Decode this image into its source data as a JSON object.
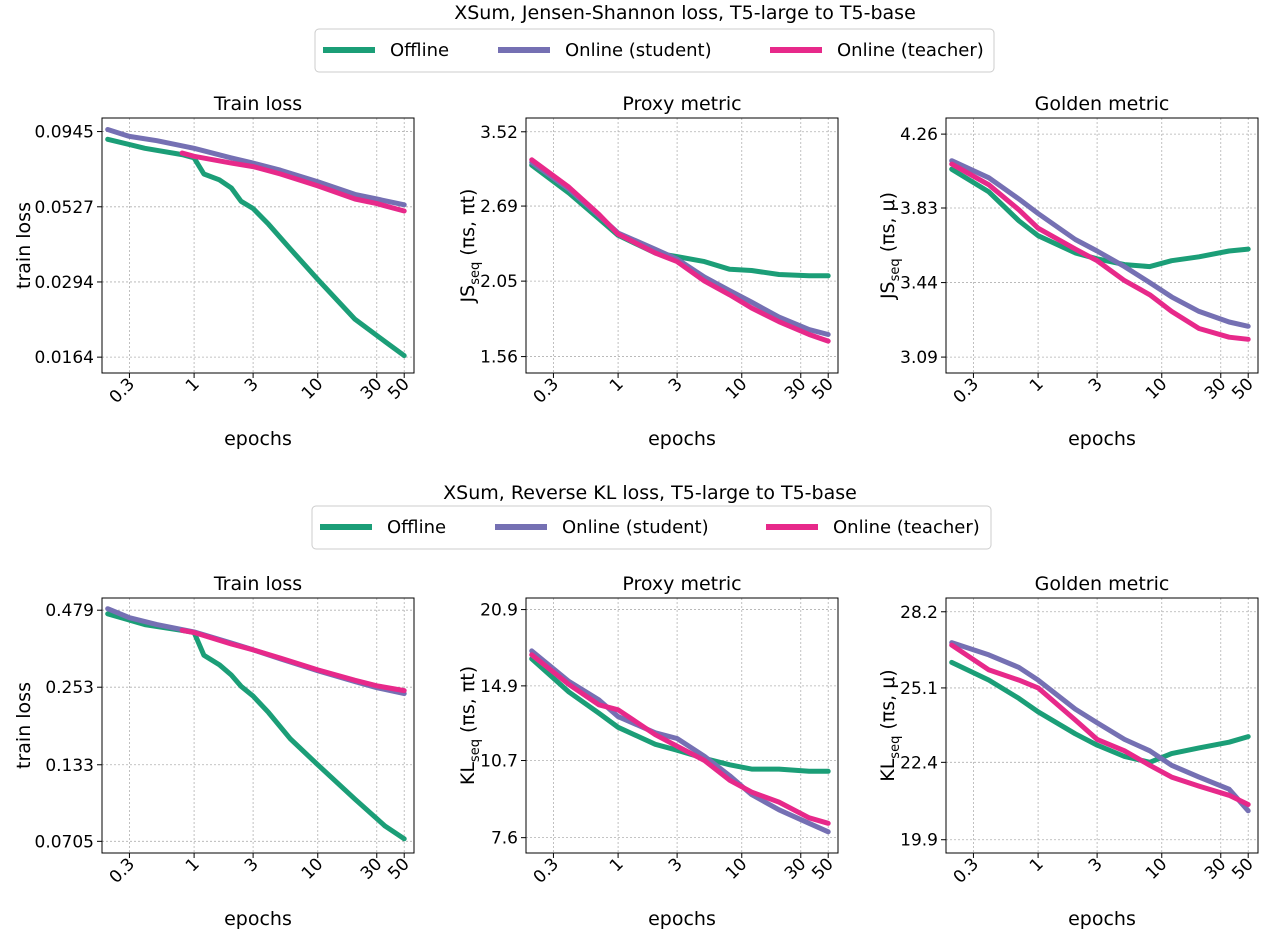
{
  "figure": {
    "colors": {
      "offline": "#1b9e77",
      "student": "#7570b3",
      "teacher": "#e7298a"
    }
  },
  "chart_data": [
    {
      "group": "XSum, Jensen-Shannon loss, T5-large to T5-base",
      "type": "line",
      "title": "Train loss",
      "xlabel": "epochs",
      "ylabel": "train loss",
      "ylabel_parts": null,
      "x_scale": "log",
      "y_scale": "log",
      "xlim": [
        0.18,
        60
      ],
      "ylim": [
        0.0145,
        0.105
      ],
      "xticks": [
        0.3,
        1,
        3,
        10,
        30,
        50
      ],
      "xtick_labels": [
        "0.3",
        "1",
        "3",
        "10",
        "30",
        "50"
      ],
      "yticks": [
        0.0164,
        0.0294,
        0.0527,
        0.0945
      ],
      "ytick_labels": [
        "0.0164",
        "0.0294",
        "0.0527",
        "0.0945"
      ],
      "grid": true,
      "series": [
        {
          "name": "Offline",
          "color": "#1b9e77",
          "x": [
            0.2,
            0.4,
            0.8,
            1.0,
            1.2,
            1.6,
            2.0,
            2.4,
            3.0,
            4,
            6,
            10,
            20,
            35,
            50
          ],
          "y": [
            0.089,
            0.083,
            0.079,
            0.077,
            0.068,
            0.065,
            0.061,
            0.055,
            0.052,
            0.046,
            0.038,
            0.03,
            0.022,
            0.0185,
            0.0166
          ]
        },
        {
          "name": "Online (student)",
          "color": "#7570b3",
          "x": [
            0.2,
            0.3,
            0.5,
            1,
            2,
            3,
            5,
            10,
            20,
            30,
            50
          ],
          "y": [
            0.096,
            0.091,
            0.088,
            0.083,
            0.077,
            0.074,
            0.07,
            0.064,
            0.058,
            0.056,
            0.0535
          ]
        },
        {
          "name": "Online (teacher)",
          "color": "#e7298a",
          "x": [
            0.8,
            1,
            2,
            3,
            5,
            10,
            20,
            30,
            50
          ],
          "y": [
            0.08,
            0.078,
            0.074,
            0.072,
            0.068,
            0.062,
            0.056,
            0.054,
            0.051
          ]
        }
      ]
    },
    {
      "group": "XSum, Jensen-Shannon loss, T5-large to T5-base",
      "type": "line",
      "title": "Proxy metric",
      "xlabel": "epochs",
      "ylabel": null,
      "ylabel_parts": [
        "JS",
        "seq",
        " (πs, πt)"
      ],
      "x_scale": "log",
      "y_scale": "log",
      "xlim": [
        0.18,
        60
      ],
      "ylim": [
        1.47,
        3.7
      ],
      "xticks": [
        0.3,
        1,
        3,
        10,
        30,
        50
      ],
      "xtick_labels": [
        "0.3",
        "1",
        "3",
        "10",
        "30",
        "50"
      ],
      "yticks": [
        1.56,
        2.05,
        2.69,
        3.52
      ],
      "ytick_labels": [
        "1.56",
        "2.05",
        "2.69",
        "3.52"
      ],
      "grid": true,
      "series": [
        {
          "name": "Offline",
          "color": "#1b9e77",
          "x": [
            0.2,
            0.4,
            0.7,
            1,
            2,
            3,
            5,
            8,
            12,
            20,
            35,
            50
          ],
          "y": [
            3.12,
            2.82,
            2.57,
            2.42,
            2.27,
            2.24,
            2.2,
            2.14,
            2.13,
            2.1,
            2.09,
            2.09
          ]
        },
        {
          "name": "Online (student)",
          "color": "#7570b3",
          "x": [
            0.2,
            0.4,
            0.7,
            1,
            2,
            3,
            5,
            8,
            12,
            20,
            35,
            50
          ],
          "y": [
            3.15,
            2.86,
            2.6,
            2.44,
            2.3,
            2.22,
            2.08,
            1.98,
            1.9,
            1.8,
            1.72,
            1.69
          ]
        },
        {
          "name": "Online (teacher)",
          "color": "#e7298a",
          "x": [
            0.2,
            0.4,
            0.7,
            1,
            2,
            3,
            5,
            8,
            12,
            20,
            35,
            50
          ],
          "y": [
            3.18,
            2.88,
            2.61,
            2.43,
            2.27,
            2.2,
            2.05,
            1.95,
            1.86,
            1.77,
            1.69,
            1.65
          ]
        }
      ]
    },
    {
      "group": "XSum, Jensen-Shannon loss, T5-large to T5-base",
      "type": "line",
      "title": "Golden metric",
      "xlabel": "epochs",
      "ylabel": null,
      "ylabel_parts": [
        "JS",
        "seq",
        " (πs, μ)"
      ],
      "x_scale": "log",
      "y_scale": "log",
      "xlim": [
        0.18,
        60
      ],
      "ylim": [
        3.02,
        4.36
      ],
      "xticks": [
        0.3,
        1,
        3,
        10,
        30,
        50
      ],
      "xtick_labels": [
        "0.3",
        "1",
        "3",
        "10",
        "30",
        "50"
      ],
      "yticks": [
        3.09,
        3.44,
        3.83,
        4.26
      ],
      "ytick_labels": [
        "3.09",
        "3.44",
        "3.83",
        "4.26"
      ],
      "grid": true,
      "series": [
        {
          "name": "Offline",
          "color": "#1b9e77",
          "x": [
            0.2,
            0.4,
            0.7,
            1,
            2,
            3,
            5,
            8,
            12,
            20,
            35,
            50
          ],
          "y": [
            4.05,
            3.92,
            3.76,
            3.68,
            3.59,
            3.56,
            3.53,
            3.52,
            3.55,
            3.57,
            3.6,
            3.61
          ]
        },
        {
          "name": "Online (student)",
          "color": "#7570b3",
          "x": [
            0.2,
            0.4,
            0.7,
            1,
            2,
            3,
            5,
            8,
            12,
            20,
            35,
            50
          ],
          "y": [
            4.1,
            4.0,
            3.88,
            3.8,
            3.66,
            3.6,
            3.52,
            3.44,
            3.37,
            3.3,
            3.25,
            3.23
          ]
        },
        {
          "name": "Online (teacher)",
          "color": "#e7298a",
          "x": [
            0.2,
            0.4,
            0.7,
            1,
            2,
            3,
            5,
            8,
            12,
            20,
            35,
            50
          ],
          "y": [
            4.08,
            3.96,
            3.82,
            3.72,
            3.61,
            3.55,
            3.45,
            3.38,
            3.3,
            3.22,
            3.18,
            3.17
          ]
        }
      ]
    },
    {
      "group": "XSum, Reverse KL loss, T5-large to T5-base",
      "type": "line",
      "title": "Train loss",
      "xlabel": "epochs",
      "ylabel": "train loss",
      "ylabel_parts": null,
      "x_scale": "log",
      "y_scale": "log",
      "xlim": [
        0.18,
        60
      ],
      "ylim": [
        0.064,
        0.53
      ],
      "xticks": [
        0.3,
        1,
        3,
        10,
        30,
        50
      ],
      "xtick_labels": [
        "0.3",
        "1",
        "3",
        "10",
        "30",
        "50"
      ],
      "yticks": [
        0.0705,
        0.133,
        0.253,
        0.479
      ],
      "ytick_labels": [
        "0.0705",
        "0.133",
        "0.253",
        "0.479"
      ],
      "grid": true,
      "series": [
        {
          "name": "Offline",
          "color": "#1b9e77",
          "x": [
            0.2,
            0.4,
            0.8,
            1.0,
            1.2,
            1.6,
            2.0,
            2.4,
            3.0,
            4,
            6,
            10,
            20,
            35,
            50
          ],
          "y": [
            0.465,
            0.425,
            0.405,
            0.398,
            0.33,
            0.305,
            0.28,
            0.255,
            0.235,
            0.205,
            0.165,
            0.133,
            0.1,
            0.08,
            0.072
          ]
        },
        {
          "name": "Online (student)",
          "color": "#7570b3",
          "x": [
            0.2,
            0.3,
            0.5,
            1,
            2,
            3,
            5,
            10,
            20,
            30,
            50
          ],
          "y": [
            0.485,
            0.45,
            0.425,
            0.4,
            0.365,
            0.345,
            0.32,
            0.29,
            0.265,
            0.252,
            0.24
          ]
        },
        {
          "name": "Online (teacher)",
          "color": "#e7298a",
          "x": [
            0.8,
            1,
            2,
            3,
            5,
            10,
            20,
            30,
            50
          ],
          "y": [
            0.405,
            0.398,
            0.362,
            0.345,
            0.322,
            0.292,
            0.268,
            0.256,
            0.246
          ]
        }
      ]
    },
    {
      "group": "XSum, Reverse KL loss, T5-large to T5-base",
      "type": "line",
      "title": "Proxy metric",
      "xlabel": "epochs",
      "ylabel": null,
      "ylabel_parts": [
        "KL",
        "seq",
        " (πs, πt)"
      ],
      "x_scale": "log",
      "y_scale": "log",
      "xlim": [
        0.18,
        60
      ],
      "ylim": [
        7.1,
        22.0
      ],
      "xticks": [
        0.3,
        1,
        3,
        10,
        30,
        50
      ],
      "xtick_labels": [
        "0.3",
        "1",
        "3",
        "10",
        "30",
        "50"
      ],
      "yticks": [
        7.6,
        10.7,
        14.9,
        20.9
      ],
      "ytick_labels": [
        "7.6",
        "10.7",
        "14.9",
        "20.9"
      ],
      "grid": true,
      "series": [
        {
          "name": "Offline",
          "color": "#1b9e77",
          "x": [
            0.2,
            0.4,
            0.7,
            1,
            2,
            3,
            5,
            8,
            12,
            20,
            35,
            50
          ],
          "y": [
            16.8,
            14.5,
            13.2,
            12.4,
            11.5,
            11.2,
            10.8,
            10.5,
            10.3,
            10.3,
            10.2,
            10.2
          ]
        },
        {
          "name": "Online (student)",
          "color": "#7570b3",
          "x": [
            0.2,
            0.4,
            0.7,
            1,
            2,
            3,
            5,
            8,
            12,
            20,
            35,
            50
          ],
          "y": [
            17.4,
            15.2,
            14.0,
            13.0,
            12.1,
            11.8,
            10.9,
            10.0,
            9.2,
            8.6,
            8.1,
            7.8
          ]
        },
        {
          "name": "Online (teacher)",
          "color": "#e7298a",
          "x": [
            0.2,
            0.4,
            0.7,
            1,
            2,
            3,
            5,
            8,
            12,
            20,
            35,
            50
          ],
          "y": [
            17.1,
            15.0,
            13.7,
            13.4,
            12.0,
            11.4,
            10.7,
            9.8,
            9.3,
            8.9,
            8.3,
            8.1
          ]
        }
      ]
    },
    {
      "group": "XSum, Reverse KL loss, T5-large to T5-base",
      "type": "line",
      "title": "Golden metric",
      "xlabel": "epochs",
      "ylabel": null,
      "ylabel_parts": [
        "KL",
        "seq",
        " (πs, μ)"
      ],
      "x_scale": "log",
      "y_scale": "log",
      "xlim": [
        0.18,
        60
      ],
      "ylim": [
        19.5,
        28.8
      ],
      "xticks": [
        0.3,
        1,
        3,
        10,
        30,
        50
      ],
      "xtick_labels": [
        "0.3",
        "1",
        "3",
        "10",
        "30",
        "50"
      ],
      "yticks": [
        19.9,
        22.4,
        25.1,
        28.2
      ],
      "ytick_labels": [
        "19.9",
        "22.4",
        "25.1",
        "28.2"
      ],
      "grid": true,
      "series": [
        {
          "name": "Offline",
          "color": "#1b9e77",
          "x": [
            0.2,
            0.4,
            0.7,
            1,
            2,
            3,
            5,
            8,
            12,
            20,
            35,
            50
          ],
          "y": [
            26.1,
            25.4,
            24.7,
            24.2,
            23.4,
            23.0,
            22.6,
            22.4,
            22.7,
            22.9,
            23.1,
            23.3
          ]
        },
        {
          "name": "Online (student)",
          "color": "#7570b3",
          "x": [
            0.2,
            0.4,
            0.7,
            1,
            2,
            3,
            5,
            8,
            12,
            20,
            35,
            50
          ],
          "y": [
            26.9,
            26.4,
            25.9,
            25.4,
            24.3,
            23.8,
            23.2,
            22.8,
            22.3,
            21.9,
            21.5,
            20.8
          ]
        },
        {
          "name": "Online (teacher)",
          "color": "#e7298a",
          "x": [
            0.2,
            0.4,
            0.7,
            1,
            2,
            3,
            5,
            8,
            12,
            20,
            35,
            50
          ],
          "y": [
            26.8,
            25.8,
            25.4,
            25.1,
            23.9,
            23.2,
            22.8,
            22.3,
            21.9,
            21.6,
            21.3,
            21.0
          ]
        }
      ]
    }
  ],
  "groups": [
    {
      "title": "XSum, Jensen-Shannon loss, T5-large to T5-base",
      "legend": [
        "Offline",
        "Online (student)",
        "Online (teacher)"
      ]
    },
    {
      "title": "XSum, Reverse KL loss, T5-large to T5-base",
      "legend": [
        "Offline",
        "Online (student)",
        "Online (teacher)"
      ]
    }
  ]
}
